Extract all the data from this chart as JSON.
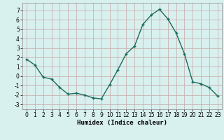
{
  "x": [
    0,
    1,
    2,
    3,
    4,
    5,
    6,
    7,
    8,
    9,
    10,
    11,
    12,
    13,
    14,
    15,
    16,
    17,
    18,
    19,
    20,
    21,
    22,
    23
  ],
  "y": [
    1.8,
    1.2,
    -0.1,
    -0.3,
    -1.2,
    -1.9,
    -1.8,
    -2.0,
    -2.3,
    -2.4,
    -0.9,
    0.7,
    2.4,
    3.2,
    5.5,
    6.5,
    7.1,
    6.1,
    4.6,
    2.4,
    -0.6,
    -0.8,
    -1.2,
    -2.1
  ],
  "line_color": "#1a6b5a",
  "marker": "+",
  "marker_size": 3,
  "marker_edge_width": 1.0,
  "bg_color": "#d8f0ee",
  "grid_color": "#c8a8a8",
  "xlabel": "Humidex (Indice chaleur)",
  "xlim": [
    -0.5,
    23.5
  ],
  "ylim": [
    -3.5,
    7.8
  ],
  "yticks": [
    -3,
    -2,
    -1,
    0,
    1,
    2,
    3,
    4,
    5,
    6,
    7
  ],
  "xticks": [
    0,
    1,
    2,
    3,
    4,
    5,
    6,
    7,
    8,
    9,
    10,
    11,
    12,
    13,
    14,
    15,
    16,
    17,
    18,
    19,
    20,
    21,
    22,
    23
  ],
  "tick_fontsize": 5.5,
  "xlabel_fontsize": 6.5,
  "line_width": 1.0
}
